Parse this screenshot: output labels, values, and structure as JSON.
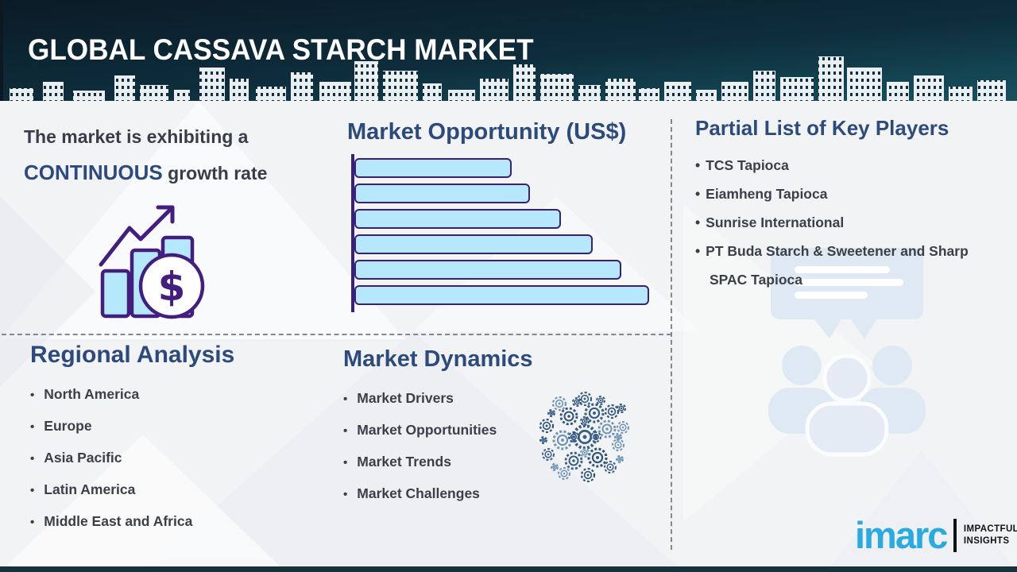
{
  "header": {
    "title": "GLOBAL CASSAVA STARCH MARKET"
  },
  "growth": {
    "line1": "The market is exhibiting a",
    "highlight": "CONTINUOUS",
    "line2": " growth rate",
    "dollar_symbol": "$"
  },
  "chart_data": {
    "type": "bar",
    "orientation": "horizontal",
    "title": "Market Opportunity (US$)",
    "categories": [
      "",
      "",
      "",
      "",
      "",
      ""
    ],
    "values": [
      198,
      221,
      260,
      300,
      336,
      371
    ],
    "xlim": [
      0,
      380
    ],
    "grid": false,
    "legend": false,
    "bar_fill": "#b7e7fb",
    "bar_stroke": "#3b2173",
    "axis_color": "#3b2173"
  },
  "key_players": {
    "heading": "Partial List of Key Players",
    "items": [
      "TCS Tapioca",
      "Eiamheng Tapioca",
      "Sunrise International",
      "PT Buda Starch & Sweetener and Sharp SPAC Tapioca"
    ]
  },
  "regional": {
    "heading": "Regional Analysis",
    "items": [
      "North America",
      "Europe",
      "Asia Pacific",
      "Latin America",
      "Middle East and Africa"
    ]
  },
  "dynamics": {
    "heading": "Market Dynamics",
    "items": [
      "Market Drivers",
      "Market Opportunities",
      "Market Trends",
      "Market Challenges"
    ]
  },
  "logo": {
    "brand": "imarc",
    "tagline_line1": "IMPACTFUL",
    "tagline_line2": "INSIGHTS"
  },
  "colors": {
    "header_top": "#0a1b26",
    "header_bottom": "#17525f",
    "heading_blue": "#2d4a7c",
    "text_dark": "#3a3f48",
    "highlight_blue": "#2d4a80",
    "bar_fill": "#b7e7fb",
    "bar_stroke": "#3b2173",
    "icon_purple": "#431e7e",
    "icon_light_blue": "#b6e8fc",
    "pale_icon": "#dfe9f4",
    "gear_blue": "#3a5f86",
    "logo_cyan": "#29abe2",
    "bottom_bar": "#16333d"
  }
}
